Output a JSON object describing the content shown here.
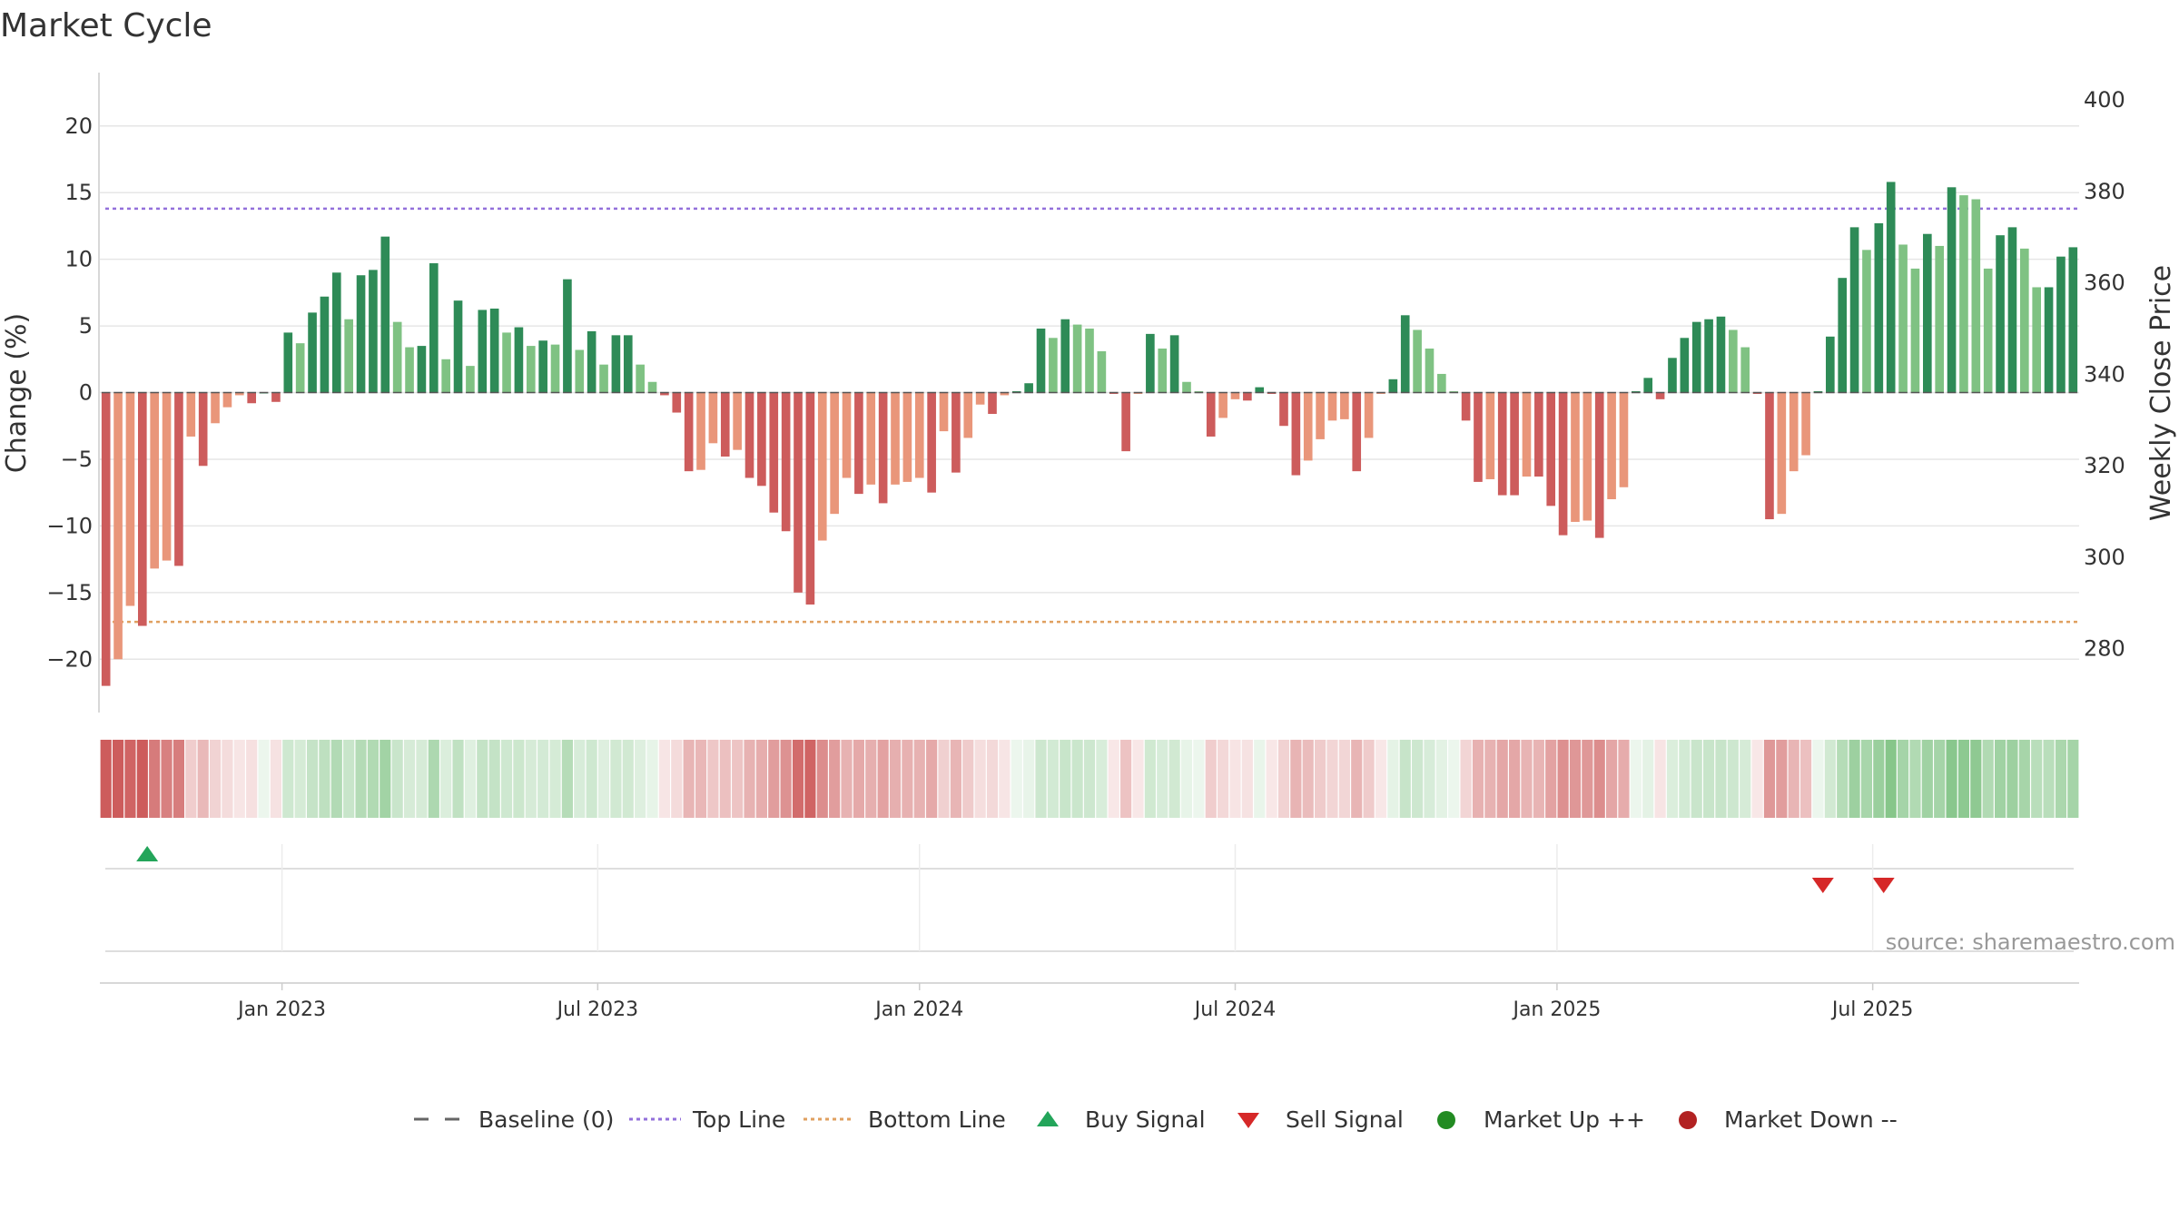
{
  "chart_data": {
    "type": "bar",
    "title": "Market Cycle",
    "ylabel_left": "Change (%)",
    "ylabel_right": "Weekly Close Price",
    "left_yticks": [
      20,
      15,
      10,
      5,
      0,
      -5,
      -10,
      -15,
      -20
    ],
    "left_ylim": [
      -24,
      24
    ],
    "right_yticks": [
      400,
      380,
      360,
      340,
      320,
      300,
      280
    ],
    "right_ylim": [
      266,
      406
    ],
    "top_line": 13.8,
    "bottom_line": -17.2,
    "baseline": 0,
    "x_tick_labels": [
      "Jan 2023",
      "Jul 2023",
      "Jan 2024",
      "Jul 2024",
      "Jan 2025",
      "Jul 2025"
    ],
    "x_tick_index": [
      15,
      41,
      67.5,
      93.5,
      120,
      146
    ],
    "grid": true,
    "legend_position": "bottom",
    "weekly_change": [
      -22,
      -20,
      -16,
      -17.5,
      -13.2,
      -12.6,
      -13,
      -3.3,
      -5.5,
      -2.3,
      -1.1,
      -0.2,
      -0.8,
      0,
      -0.7,
      4.5,
      3.7,
      6,
      7.2,
      9,
      5.5,
      8.8,
      9.2,
      11.7,
      5.3,
      3.4,
      3.5,
      9.7,
      2.5,
      6.9,
      2,
      6.2,
      6.3,
      4.5,
      4.9,
      3.5,
      3.9,
      3.6,
      8.5,
      3.2,
      4.6,
      2.1,
      4.3,
      4.3,
      2.1,
      0.8,
      -0.2,
      -1.5,
      -5.9,
      -5.8,
      -3.8,
      -4.8,
      -4.3,
      -6.4,
      -7,
      -9,
      -10.4,
      -15,
      -15.9,
      -11.1,
      -9.1,
      -6.4,
      -7.6,
      -6.9,
      -8.3,
      -6.9,
      -6.7,
      -6.4,
      -7.5,
      -2.9,
      -6,
      -3.4,
      -0.9,
      -1.6,
      -0.2,
      0.1,
      0.7,
      4.8,
      4.1,
      5.5,
      5.1,
      4.8,
      3.1,
      -0.1,
      -4.4,
      -0.1,
      4.4,
      3.3,
      4.3,
      0.8,
      0.1,
      -3.3,
      -1.9,
      -0.5,
      -0.6,
      0.4,
      -0.1,
      -2.5,
      -6.2,
      -5.1,
      -3.5,
      -2.1,
      -2,
      -5.9,
      -3.4,
      -0.1,
      1,
      5.8,
      4.7,
      3.3,
      1.4,
      0.1,
      -2.1,
      -6.7,
      -6.5,
      -7.7,
      -7.7,
      -6.3,
      -6.3,
      -8.5,
      -10.7,
      -9.7,
      -9.6,
      -10.9,
      -8,
      -7.1,
      0.1,
      1.1,
      -0.5,
      2.6,
      4.1,
      5.3,
      5.5,
      5.7,
      4.7,
      3.4,
      -0.1,
      -9.5,
      -9.1,
      -5.9,
      -4.7,
      0.1,
      4.2,
      8.6,
      12.4,
      10.7,
      12.7,
      15.8,
      11.1,
      9.3,
      11.9,
      11,
      15.4,
      14.8,
      14.5,
      9.3,
      11.8,
      12.4,
      10.8,
      7.9,
      7.9,
      10.2,
      10.9
    ],
    "buy_signals": [
      {
        "index": 3
      }
    ],
    "sell_signals": [
      {
        "index": 141
      },
      {
        "index": 146
      }
    ],
    "market_up_signals": [],
    "market_down_signals": []
  },
  "colors": {
    "strong_up": "#2e8b57",
    "mild_up": "#7fc283",
    "strong_down": "#cd5c5c",
    "mild_down": "#e9967a",
    "top_line": "#9370db",
    "bottom_line": "#e0a060",
    "buy": "#23a55a",
    "sell": "#d62828",
    "market_up": "#228b22",
    "market_down": "#b22222"
  },
  "legend": {
    "baseline": "Baseline (0)",
    "top_line": "Top Line",
    "bottom_line": "Bottom Line",
    "buy": "Buy Signal",
    "sell": "Sell Signal",
    "market_up": "Market Up ++",
    "market_down": "Market Down --"
  },
  "source_text": "source: sharemaestro.com"
}
